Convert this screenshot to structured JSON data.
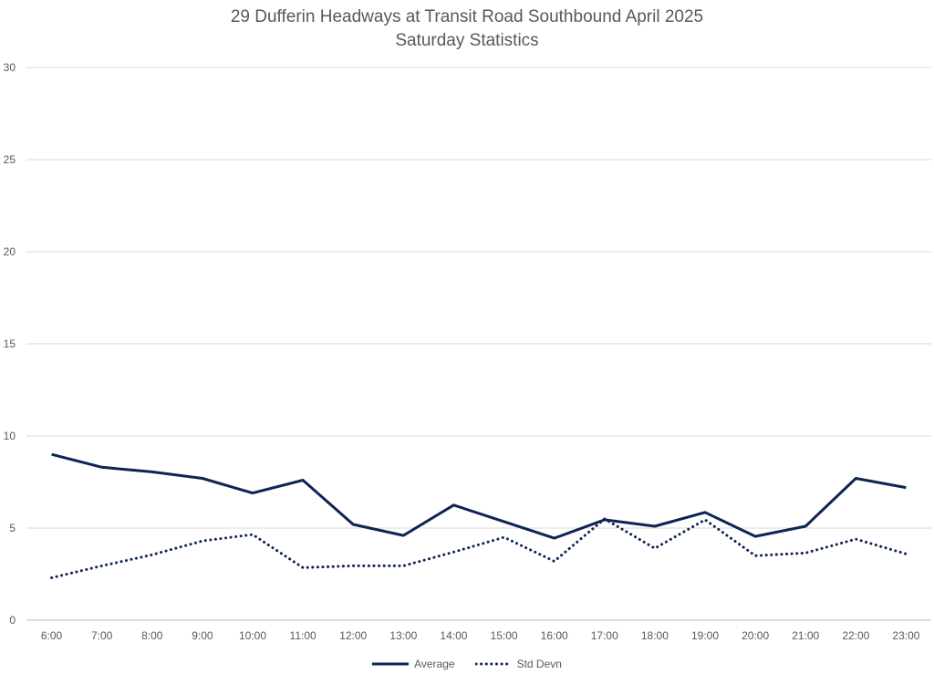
{
  "chart_data": {
    "type": "line",
    "title": "29 Dufferin Headways at Transit Road Southbound April 2025",
    "subtitle": "Saturday Statistics",
    "xlabel": "",
    "ylabel": "",
    "ylim": [
      0,
      30
    ],
    "yticks": [
      0,
      5,
      10,
      15,
      20,
      25,
      30
    ],
    "grid": true,
    "legend_position": "bottom",
    "categories": [
      "6:00",
      "7:00",
      "8:00",
      "9:00",
      "10:00",
      "11:00",
      "12:00",
      "13:00",
      "14:00",
      "15:00",
      "16:00",
      "17:00",
      "18:00",
      "19:00",
      "20:00",
      "21:00",
      "22:00",
      "23:00"
    ],
    "series": [
      {
        "name": "Average",
        "style": "solid",
        "color": "#0e2454",
        "values": [
          9.0,
          8.3,
          8.05,
          7.7,
          6.9,
          7.6,
          5.2,
          4.6,
          6.25,
          5.35,
          4.45,
          5.45,
          5.1,
          5.85,
          4.55,
          5.1,
          7.7,
          7.2
        ]
      },
      {
        "name": "Std Devn",
        "style": "dotted",
        "color": "#0e2454",
        "values": [
          2.3,
          2.95,
          3.55,
          4.3,
          4.65,
          2.85,
          2.95,
          2.95,
          3.7,
          4.5,
          3.2,
          5.5,
          3.9,
          5.45,
          3.5,
          3.65,
          4.4,
          3.6
        ]
      }
    ]
  }
}
